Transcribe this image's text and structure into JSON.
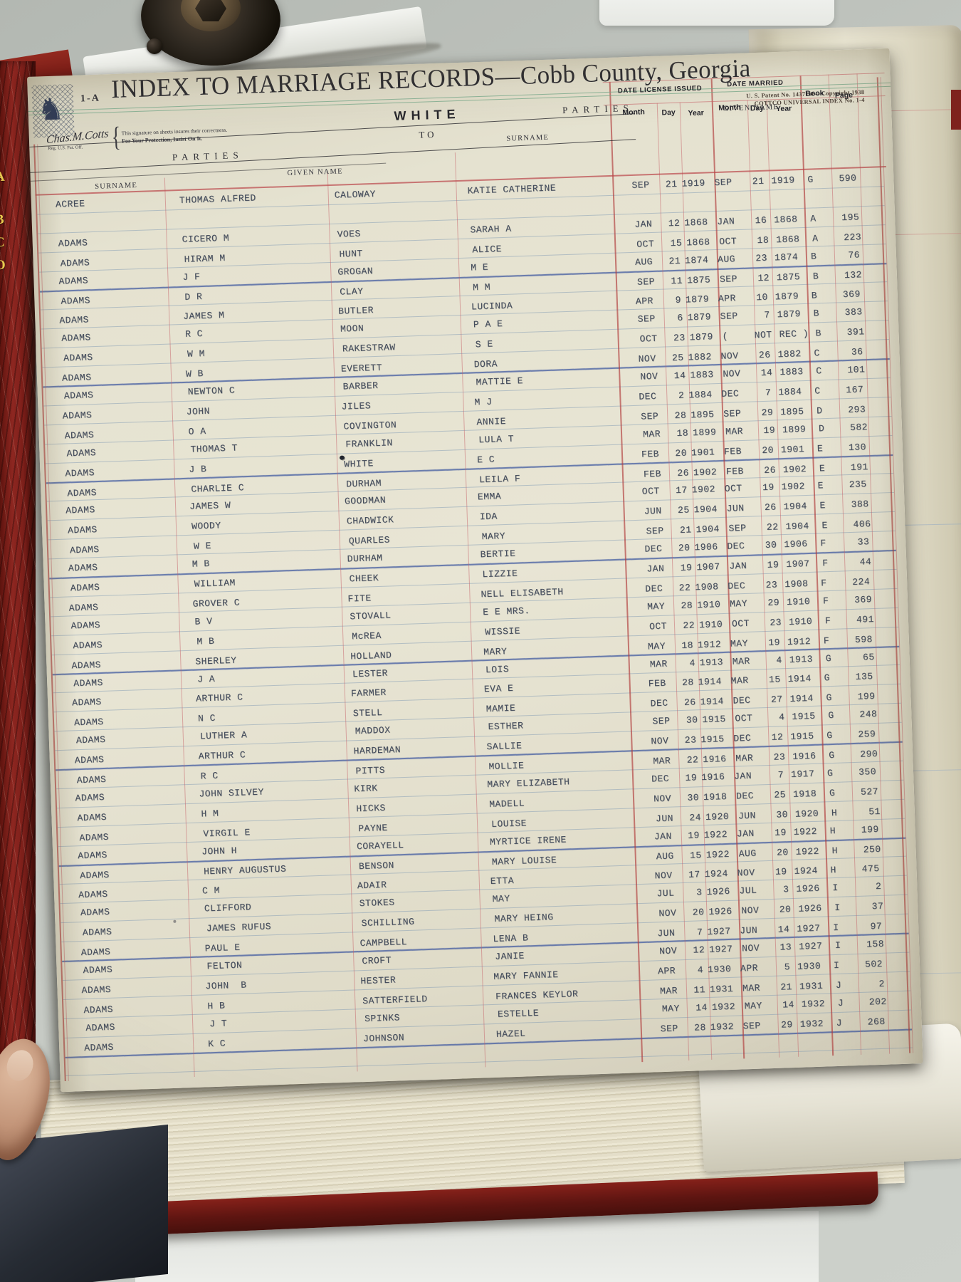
{
  "page_label": "1-A",
  "title": "INDEX TO MARRIAGE RECORDS—Cobb County, Georgia",
  "section": "WHITE",
  "patent_line1": "U. S. Patent No. 1437166—Copyright 1938",
  "patent_line2": "COTTCO UNIVERSAL INDEX No. 1-4",
  "signature": {
    "script": "Chas.M.Cotts",
    "reg": "Reg. U.S. Pat. Off.",
    "brace": "{",
    "note1": "This signature on sheets insures their correctness.",
    "note2": "For Your Protection, Insist On It."
  },
  "headers": {
    "parties": "PARTIES",
    "to": "TO",
    "surname": "SURNAME",
    "given_name": "GIVEN NAME",
    "date_license": "DATE LICENSE ISSUED",
    "date_married": "DATE MARRIED",
    "month": "Month",
    "day": "Day",
    "year": "Year",
    "book": "Book",
    "page": "Page"
  },
  "spine_letters": [
    "A",
    "B",
    "C",
    "O"
  ],
  "colors": {
    "paper": "#e6e3d1",
    "rule_red": "#c4606a",
    "rule_blue_light": "#9db3c8",
    "rule_blue_heavy": "#3e5ca6",
    "rule_green": "#94bfa6",
    "cover_red": "#8d2620",
    "typed_ink": "#454d5c"
  },
  "records": [
    {
      "s1": "ACREE",
      "g1": "THOMAS ALFRED",
      "s2": "CALOWAY",
      "g2": "KATIE CATHERINE",
      "lic": [
        "SEP",
        "21",
        "1919"
      ],
      "mar": [
        "SEP",
        "21",
        "1919"
      ],
      "bk": "G",
      "pg": "590"
    },
    {
      "s1": "ADAMS",
      "g1": "CICERO M",
      "s2": "VOES",
      "g2": "SARAH A",
      "lic": [
        "JAN",
        "12",
        "1868"
      ],
      "mar": [
        "JAN",
        "16",
        "1868"
      ],
      "bk": "A",
      "pg": "195"
    },
    {
      "s1": "ADAMS",
      "g1": "HIRAM M",
      "s2": "HUNT",
      "g2": "ALICE",
      "lic": [
        "OCT",
        "15",
        "1868"
      ],
      "mar": [
        "OCT",
        "18",
        "1868"
      ],
      "bk": "A",
      "pg": "223"
    },
    {
      "s1": "ADAMS",
      "g1": "J F",
      "s2": "GROGAN",
      "g2": "M E",
      "lic": [
        "AUG",
        "21",
        "1874"
      ],
      "mar": [
        "AUG",
        "23",
        "1874"
      ],
      "bk": "B",
      "pg": "76"
    },
    {
      "s1": "ADAMS",
      "g1": "D R",
      "s2": "CLAY",
      "g2": "M M",
      "lic": [
        "SEP",
        "11",
        "1875"
      ],
      "mar": [
        "SEP",
        "12",
        "1875"
      ],
      "bk": "B",
      "pg": "132"
    },
    {
      "s1": "ADAMS",
      "g1": "JAMES M",
      "s2": "BUTLER",
      "g2": "LUCINDA",
      "lic": [
        "APR",
        "9",
        "1879"
      ],
      "mar": [
        "APR",
        "10",
        "1879"
      ],
      "bk": "B",
      "pg": "369"
    },
    {
      "s1": "ADAMS",
      "g1": "R C",
      "s2": "MOON",
      "g2": "P A E",
      "lic": [
        "SEP",
        "6",
        "1879"
      ],
      "mar": [
        "SEP",
        "7",
        "1879"
      ],
      "bk": "B",
      "pg": "383"
    },
    {
      "s1": "ADAMS",
      "g1": "W M",
      "s2": "RAKESTRAW",
      "g2": "S E",
      "lic": [
        "OCT",
        "23",
        "1879"
      ],
      "mar": [
        "(",
        "NOT",
        "REC )"
      ],
      "bk": "B",
      "pg": "391"
    },
    {
      "s1": "ADAMS",
      "g1": "W B",
      "s2": "EVERETT",
      "g2": "DORA",
      "lic": [
        "NOV",
        "25",
        "1882"
      ],
      "mar": [
        "NOV",
        "26",
        "1882"
      ],
      "bk": "C",
      "pg": "36"
    },
    {
      "s1": "ADAMS",
      "g1": "NEWTON C",
      "s2": "BARBER",
      "g2": "MATTIE E",
      "lic": [
        "NOV",
        "14",
        "1883"
      ],
      "mar": [
        "NOV",
        "14",
        "1883"
      ],
      "bk": "C",
      "pg": "101"
    },
    {
      "s1": "ADAMS",
      "g1": "JOHN",
      "s2": "JILES",
      "g2": "M J",
      "lic": [
        "DEC",
        "2",
        "1884"
      ],
      "mar": [
        "DEC",
        "7",
        "1884"
      ],
      "bk": "C",
      "pg": "167"
    },
    {
      "s1": "ADAMS",
      "g1": "O A",
      "s2": "COVINGTON",
      "g2": "ANNIE",
      "lic": [
        "SEP",
        "28",
        "1895"
      ],
      "mar": [
        "SEP",
        "29",
        "1895"
      ],
      "bk": "D",
      "pg": "293"
    },
    {
      "s1": "ADAMS",
      "g1": "THOMAS T",
      "s2": "FRANKLIN",
      "g2": "LULA T",
      "lic": [
        "MAR",
        "18",
        "1899"
      ],
      "mar": [
        "MAR",
        "19",
        "1899"
      ],
      "bk": "D",
      "pg": "582"
    },
    {
      "s1": "ADAMS",
      "g1": "J B",
      "s2": "WHITE",
      "g2": "E C",
      "lic": [
        "FEB",
        "20",
        "1901"
      ],
      "mar": [
        "FEB",
        "20",
        "1901"
      ],
      "bk": "E",
      "pg": "130"
    },
    {
      "s1": "ADAMS",
      "g1": "CHARLIE C",
      "s2": "DURHAM",
      "g2": "LEILA F",
      "lic": [
        "FEB",
        "26",
        "1902"
      ],
      "mar": [
        "FEB",
        "26",
        "1902"
      ],
      "bk": "E",
      "pg": "191"
    },
    {
      "s1": "ADAMS",
      "g1": "JAMES W",
      "s2": "GOODMAN",
      "g2": "EMMA",
      "lic": [
        "OCT",
        "17",
        "1902"
      ],
      "mar": [
        "OCT",
        "19",
        "1902"
      ],
      "bk": "E",
      "pg": "235"
    },
    {
      "s1": "ADAMS",
      "g1": "WOODY",
      "s2": "CHADWICK",
      "g2": "IDA",
      "lic": [
        "JUN",
        "25",
        "1904"
      ],
      "mar": [
        "JUN",
        "26",
        "1904"
      ],
      "bk": "E",
      "pg": "388"
    },
    {
      "s1": "ADAMS",
      "g1": "W E",
      "s2": "QUARLES",
      "g2": "MARY",
      "lic": [
        "SEP",
        "21",
        "1904"
      ],
      "mar": [
        "SEP",
        "22",
        "1904"
      ],
      "bk": "E",
      "pg": "406"
    },
    {
      "s1": "ADAMS",
      "g1": "M B",
      "s2": "DURHAM",
      "g2": "BERTIE",
      "lic": [
        "DEC",
        "20",
        "1906"
      ],
      "mar": [
        "DEC",
        "30",
        "1906"
      ],
      "bk": "F",
      "pg": "33"
    },
    {
      "s1": "ADAMS",
      "g1": "WILLIAM",
      "s2": "CHEEK",
      "g2": "LIZZIE",
      "lic": [
        "JAN",
        "19",
        "1907"
      ],
      "mar": [
        "JAN",
        "19",
        "1907"
      ],
      "bk": "F",
      "pg": "44"
    },
    {
      "s1": "ADAMS",
      "g1": "GROVER C",
      "s2": "FITE",
      "g2": "NELL ELISABETH",
      "lic": [
        "DEC",
        "22",
        "1908"
      ],
      "mar": [
        "DEC",
        "23",
        "1908"
      ],
      "bk": "F",
      "pg": "224"
    },
    {
      "s1": "ADAMS",
      "g1": "B V",
      "s2": "STOVALL",
      "g2": "E E MRS.",
      "lic": [
        "MAY",
        "28",
        "1910"
      ],
      "mar": [
        "MAY",
        "29",
        "1910"
      ],
      "bk": "F",
      "pg": "369"
    },
    {
      "s1": "ADAMS",
      "g1": "M B",
      "s2": "McREA",
      "g2": "WISSIE",
      "lic": [
        "OCT",
        "22",
        "1910"
      ],
      "mar": [
        "OCT",
        "23",
        "1910"
      ],
      "bk": "F",
      "pg": "491"
    },
    {
      "s1": "ADAMS",
      "g1": "SHERLEY",
      "s2": "HOLLAND",
      "g2": "MARY",
      "lic": [
        "MAY",
        "18",
        "1912"
      ],
      "mar": [
        "MAY",
        "19",
        "1912"
      ],
      "bk": "F",
      "pg": "598"
    },
    {
      "s1": "ADAMS",
      "g1": "J A",
      "s2": "LESTER",
      "g2": "LOIS",
      "lic": [
        "MAR",
        "4",
        "1913"
      ],
      "mar": [
        "MAR",
        "4",
        "1913"
      ],
      "bk": "G",
      "pg": "65"
    },
    {
      "s1": "ADAMS",
      "g1": "ARTHUR C",
      "s2": "FARMER",
      "g2": "EVA E",
      "lic": [
        "FEB",
        "28",
        "1914"
      ],
      "mar": [
        "MAR",
        "15",
        "1914"
      ],
      "bk": "G",
      "pg": "135"
    },
    {
      "s1": "ADAMS",
      "g1": "N C",
      "s2": "STELL",
      "g2": "MAMIE",
      "lic": [
        "DEC",
        "26",
        "1914"
      ],
      "mar": [
        "DEC",
        "27",
        "1914"
      ],
      "bk": "G",
      "pg": "199"
    },
    {
      "s1": "ADAMS",
      "g1": "LUTHER A",
      "s2": "MADDOX",
      "g2": "ESTHER",
      "lic": [
        "SEP",
        "30",
        "1915"
      ],
      "mar": [
        "OCT",
        "4",
        "1915"
      ],
      "bk": "G",
      "pg": "248"
    },
    {
      "s1": "ADAMS",
      "g1": "ARTHUR C",
      "s2": "HARDEMAN",
      "g2": "SALLIE",
      "lic": [
        "NOV",
        "23",
        "1915"
      ],
      "mar": [
        "DEC",
        "12",
        "1915"
      ],
      "bk": "G",
      "pg": "259"
    },
    {
      "s1": "ADAMS",
      "g1": "R C",
      "s2": "PITTS",
      "g2": "MOLLIE",
      "lic": [
        "MAR",
        "22",
        "1916"
      ],
      "mar": [
        "MAR",
        "23",
        "1916"
      ],
      "bk": "G",
      "pg": "290"
    },
    {
      "s1": "ADAMS",
      "g1": "JOHN SILVEY",
      "s2": "KIRK",
      "g2": "MARY ELIZABETH",
      "lic": [
        "DEC",
        "19",
        "1916"
      ],
      "mar": [
        "JAN",
        "7",
        "1917"
      ],
      "bk": "G",
      "pg": "350"
    },
    {
      "s1": "ADAMS",
      "g1": "H M",
      "s2": "HICKS",
      "g2": "MADELL",
      "lic": [
        "NOV",
        "30",
        "1918"
      ],
      "mar": [
        "DEC",
        "25",
        "1918"
      ],
      "bk": "G",
      "pg": "527"
    },
    {
      "s1": "ADAMS",
      "g1": "VIRGIL E",
      "s2": "PAYNE",
      "g2": "LOUISE",
      "lic": [
        "JUN",
        "24",
        "1920"
      ],
      "mar": [
        "JUN",
        "30",
        "1920"
      ],
      "bk": "H",
      "pg": "51"
    },
    {
      "s1": "ADAMS",
      "g1": "JOHN H",
      "s2": "CORAYELL",
      "g2": "MYRTICE IRENE",
      "lic": [
        "JAN",
        "19",
        "1922"
      ],
      "mar": [
        "JAN",
        "19",
        "1922"
      ],
      "bk": "H",
      "pg": "199"
    },
    {
      "s1": "ADAMS",
      "g1": "HENRY AUGUSTUS",
      "s2": "BENSON",
      "g2": "MARY LOUISE",
      "lic": [
        "AUG",
        "15",
        "1922"
      ],
      "mar": [
        "AUG",
        "20",
        "1922"
      ],
      "bk": "H",
      "pg": "250"
    },
    {
      "s1": "ADAMS",
      "g1": "C M",
      "s2": "ADAIR",
      "g2": "ETTA",
      "lic": [
        "NOV",
        "17",
        "1924"
      ],
      "mar": [
        "NOV",
        "19",
        "1924"
      ],
      "bk": "H",
      "pg": "475"
    },
    {
      "s1": "ADAMS",
      "g1": "CLIFFORD",
      "s2": "STOKES",
      "g2": "MAY",
      "lic": [
        "JUL",
        "3",
        "1926"
      ],
      "mar": [
        "JUL",
        "3",
        "1926"
      ],
      "bk": "I",
      "pg": "2"
    },
    {
      "s1": "ADAMS",
      "g1": "JAMES RUFUS",
      "s2": "SCHILLING",
      "g2": "MARY HEING",
      "lic": [
        "NOV",
        "20",
        "1926"
      ],
      "mar": [
        "NOV",
        "20",
        "1926"
      ],
      "bk": "I",
      "pg": "37"
    },
    {
      "s1": "ADAMS",
      "g1": "PAUL E",
      "s2": "CAMPBELL",
      "g2": "LENA B",
      "lic": [
        "JUN",
        "7",
        "1927"
      ],
      "mar": [
        "JUN",
        "14",
        "1927"
      ],
      "bk": "I",
      "pg": "97"
    },
    {
      "s1": "ADAMS",
      "g1": "FELTON",
      "s2": "CROFT",
      "g2": "JANIE",
      "lic": [
        "NOV",
        "12",
        "1927"
      ],
      "mar": [
        "NOV",
        "13",
        "1927"
      ],
      "bk": "I",
      "pg": "158"
    },
    {
      "s1": "ADAMS",
      "g1": "JOHN  B",
      "s2": "HESTER",
      "g2": "MARY FANNIE",
      "lic": [
        "APR",
        "4",
        "1930"
      ],
      "mar": [
        "APR",
        "5",
        "1930"
      ],
      "bk": "I",
      "pg": "502"
    },
    {
      "s1": "ADAMS",
      "g1": "H B",
      "s2": "SATTERFIELD",
      "g2": "FRANCES KEYLOR",
      "lic": [
        "MAR",
        "11",
        "1931"
      ],
      "mar": [
        "MAR",
        "21",
        "1931"
      ],
      "bk": "J",
      "pg": "2"
    },
    {
      "s1": "ADAMS",
      "g1": "J T",
      "s2": "SPINKS",
      "g2": "ESTELLE",
      "lic": [
        "MAY",
        "14",
        "1932"
      ],
      "mar": [
        "MAY",
        "14",
        "1932"
      ],
      "bk": "J",
      "pg": "202"
    },
    {
      "s1": "ADAMS",
      "g1": "K C",
      "s2": "JOHNSON",
      "g2": "HAZEL",
      "lic": [
        "SEP",
        "28",
        "1932"
      ],
      "mar": [
        "SEP",
        "29",
        "1932"
      ],
      "bk": "J",
      "pg": "268"
    }
  ]
}
